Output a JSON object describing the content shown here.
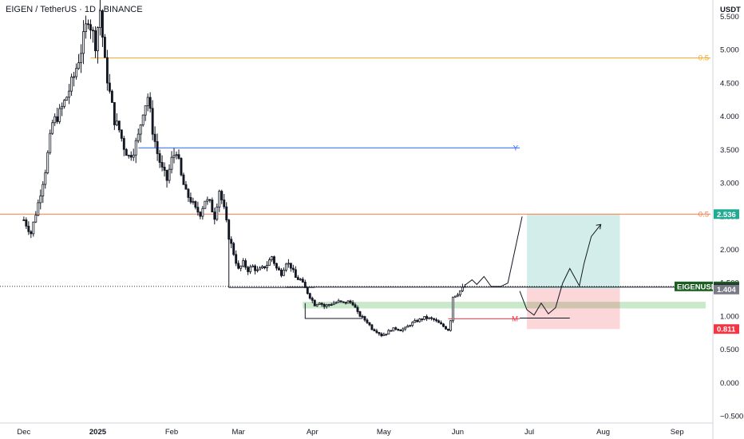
{
  "header": {
    "title": "EIGEN / TetherUS · 1D · BINANCE",
    "currency": "USDT"
  },
  "chart_data": {
    "type": "candlestick",
    "y_axis": {
      "ticks": [
        "5.500",
        "5.000",
        "4.500",
        "4.000",
        "3.500",
        "3.000",
        "2.500",
        "2.000",
        "1.500",
        "1.000",
        "0.500",
        "0.000",
        "−0.500"
      ],
      "range": [
        -0.6,
        5.75
      ]
    },
    "x_axis": {
      "ticks": [
        "Dec",
        "2025",
        "Feb",
        "Mar",
        "Apr",
        "May",
        "Jun",
        "Jul",
        "Aug",
        "Sep"
      ],
      "range_days": [
        -10,
        289
      ]
    },
    "price_anchors": [
      [
        0,
        2.45
      ],
      [
        3,
        2.25
      ],
      [
        6,
        2.7
      ],
      [
        9,
        3.2
      ],
      [
        12,
        3.9
      ],
      [
        15,
        4.05
      ],
      [
        18,
        4.3
      ],
      [
        21,
        4.6
      ],
      [
        24,
        5.0
      ],
      [
        27,
        5.5
      ],
      [
        30,
        5.1
      ],
      [
        32,
        5.6
      ],
      [
        34,
        4.8
      ],
      [
        36,
        4.35
      ],
      [
        38,
        3.95
      ],
      [
        40,
        3.8
      ],
      [
        42,
        3.55
      ],
      [
        44,
        3.4
      ],
      [
        46,
        3.5
      ],
      [
        48,
        3.7
      ],
      [
        50,
        4.1
      ],
      [
        52,
        4.3
      ],
      [
        54,
        3.8
      ],
      [
        56,
        3.45
      ],
      [
        58,
        3.2
      ],
      [
        60,
        3.05
      ],
      [
        62,
        3.35
      ],
      [
        64,
        3.5
      ],
      [
        66,
        3.1
      ],
      [
        68,
        2.85
      ],
      [
        70,
        2.75
      ],
      [
        72,
        2.6
      ],
      [
        74,
        2.55
      ],
      [
        76,
        2.75
      ],
      [
        78,
        2.7
      ],
      [
        80,
        2.5
      ],
      [
        82,
        2.9
      ],
      [
        84,
        2.6
      ],
      [
        86,
        2.2
      ],
      [
        88,
        1.95
      ],
      [
        90,
        1.7
      ],
      [
        92,
        1.8
      ],
      [
        94,
        1.7
      ],
      [
        96,
        1.75
      ],
      [
        98,
        1.68
      ],
      [
        100,
        1.72
      ],
      [
        102,
        1.78
      ],
      [
        104,
        1.9
      ],
      [
        106,
        1.72
      ],
      [
        108,
        1.65
      ],
      [
        110,
        1.82
      ],
      [
        112,
        1.75
      ],
      [
        114,
        1.58
      ],
      [
        116,
        1.55
      ],
      [
        118,
        1.42
      ],
      [
        120,
        1.3
      ],
      [
        122,
        1.18
      ],
      [
        124,
        1.22
      ],
      [
        126,
        1.15
      ],
      [
        128,
        1.18
      ],
      [
        130,
        1.2
      ],
      [
        132,
        1.22
      ],
      [
        134,
        1.2
      ],
      [
        136,
        1.22
      ],
      [
        138,
        1.2
      ],
      [
        140,
        1.05
      ],
      [
        142,
        0.98
      ],
      [
        144,
        0.92
      ],
      [
        146,
        0.82
      ],
      [
        148,
        0.78
      ],
      [
        150,
        0.72
      ],
      [
        152,
        0.75
      ],
      [
        154,
        0.8
      ],
      [
        156,
        0.82
      ],
      [
        158,
        0.8
      ],
      [
        160,
        0.82
      ],
      [
        162,
        0.88
      ],
      [
        164,
        0.92
      ],
      [
        166,
        0.95
      ],
      [
        168,
        0.98
      ],
      [
        170,
        0.97
      ],
      [
        172,
        0.95
      ],
      [
        174,
        0.9
      ],
      [
        176,
        0.85
      ],
      [
        178,
        0.8
      ],
      [
        179,
        0.95
      ],
      [
        180,
        1.3
      ],
      [
        182,
        1.35
      ],
      [
        184,
        1.42
      ],
      [
        185,
        1.45
      ]
    ],
    "horizontal_levels": [
      {
        "price": 4.88,
        "label": "0.5",
        "color": "#f5a623",
        "from_day": 28,
        "to_day": 288
      },
      {
        "price": 2.536,
        "label": "0.5",
        "color": "#f57c45",
        "from_day": -10,
        "to_day": 288
      },
      {
        "price": 3.53,
        "label": "Y",
        "color": "#2962ff",
        "from_day": 48,
        "to_day": 208
      },
      {
        "price": 0.965,
        "label": "M",
        "color": "#f23645",
        "from_day": 178,
        "to_day": 208
      }
    ],
    "support_zone": {
      "top": 1.22,
      "bottom": 1.12,
      "from_day": 117,
      "to_day": 286,
      "color": "#b8e0b8"
    },
    "position_box": {
      "entry": 1.418,
      "target": 2.536,
      "stop": 0.811,
      "from_day": 211,
      "to_day": 250
    },
    "price_tags": [
      {
        "text": "2.536",
        "price": 2.536,
        "color": "#22ab94"
      },
      {
        "text": "EIGENUSDT",
        "price": 1.451,
        "color": "#1b5e20",
        "value": "1.451"
      },
      {
        "text": "1.418",
        "price": 1.418,
        "color": "#131722"
      },
      {
        "text": "1.404",
        "price": 1.404,
        "color": "#787b86"
      },
      {
        "text": "0.811",
        "price": 0.811,
        "color": "#f23645"
      }
    ],
    "last_price": 1.451,
    "grid": false,
    "colors": {
      "up": "#ffffff",
      "down": "#131722",
      "wick": "#131722"
    }
  }
}
